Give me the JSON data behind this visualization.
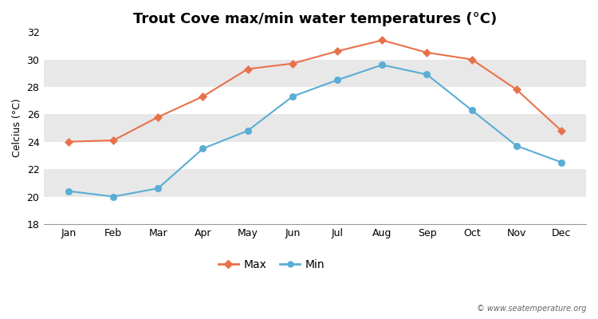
{
  "title": "Trout Cove max/min water temperatures (°C)",
  "ylabel": "Celcius (°C)",
  "months": [
    "Jan",
    "Feb",
    "Mar",
    "Apr",
    "May",
    "Jun",
    "Jul",
    "Aug",
    "Sep",
    "Oct",
    "Nov",
    "Dec"
  ],
  "max_values": [
    24.0,
    24.1,
    25.8,
    27.3,
    29.3,
    29.7,
    30.6,
    31.4,
    30.5,
    30.0,
    27.8,
    24.8
  ],
  "min_values": [
    20.4,
    20.0,
    20.6,
    23.5,
    24.8,
    27.3,
    28.5,
    29.6,
    28.9,
    26.3,
    23.7,
    22.5
  ],
  "max_color": "#e8714a",
  "min_color": "#5aadd4",
  "ylim": [
    18,
    32
  ],
  "yticks": [
    18,
    20,
    22,
    24,
    26,
    28,
    30,
    32
  ],
  "fig_bg_color": "#ffffff",
  "plot_bg_color": "#e8e8e8",
  "band_color_light": "#f0f0f0",
  "band_color_dark": "#e0e0e0",
  "grid_color": "#ffffff",
  "watermark": "© www.seatemperature.org",
  "legend_max": "Max",
  "legend_min": "Min",
  "title_fontsize": 13,
  "axis_fontsize": 9,
  "label_fontsize": 9
}
